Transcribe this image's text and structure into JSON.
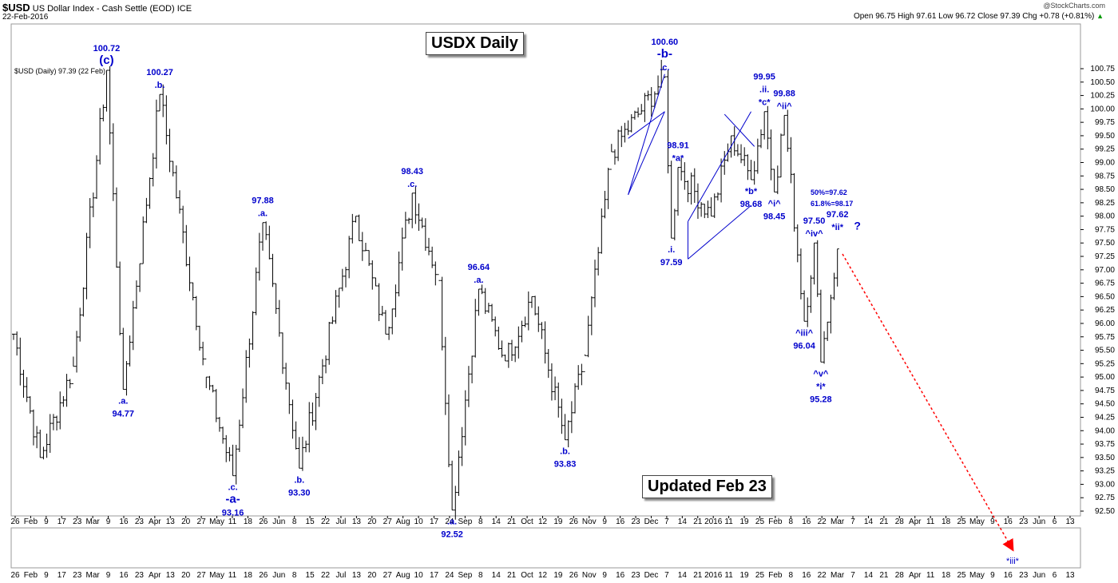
{
  "header": {
    "symbol": "$USD",
    "description": "US Dollar Index - Cash Settle (EOD)",
    "exchange": "ICE",
    "date": "22-Feb-2016",
    "credit": "@StockCharts.com",
    "quote": "Open 96.75  High 97.61  Low 96.72  Close 97.39  Chg +0.78 (+0.81%)",
    "quote_color": "#000000",
    "change_icon": "up-triangle-icon",
    "change_icon_color": "#009900"
  },
  "legend_text": "$USD (Daily) 97.39 (22 Feb)",
  "boxes": {
    "title": "USDX Daily",
    "updated": "Updated Feb 23"
  },
  "chart_data": {
    "type": "ohlc",
    "title": "USDX Daily",
    "ylim": [
      92.4,
      100.85
    ],
    "y_ticks": [
      "92.50",
      "92.75",
      "93.00",
      "93.25",
      "93.50",
      "93.75",
      "94.00",
      "94.25",
      "94.50",
      "94.75",
      "95.00",
      "95.25",
      "95.50",
      "95.75",
      "96.00",
      "96.25",
      "96.50",
      "96.75",
      "97.00",
      "97.25",
      "97.50",
      "97.75",
      "98.00",
      "98.25",
      "98.50",
      "98.75",
      "99.00",
      "99.25",
      "99.50",
      "99.75",
      "100.00",
      "100.25",
      "100.50",
      "100.75"
    ],
    "x_ticks": [
      "26",
      "Feb",
      "9",
      "17",
      "23",
      "Mar",
      "9",
      "16",
      "23",
      "Apr",
      "13",
      "20",
      "27",
      "May",
      "11",
      "18",
      "26",
      "Jun",
      "8",
      "15",
      "22",
      "Jul",
      "13",
      "20",
      "27",
      "Aug",
      "10",
      "17",
      "24",
      "Sep",
      "8",
      "14",
      "21",
      "Oct",
      "12",
      "19",
      "26",
      "Nov",
      "9",
      "16",
      "23",
      "Dec",
      "7",
      "14",
      "21",
      "2016",
      "11",
      "19",
      "25",
      "Feb",
      "8",
      "16",
      "22",
      "Mar",
      "7",
      "14",
      "21",
      "28",
      "Apr",
      "11",
      "18",
      "25",
      "May",
      "9",
      "16",
      "23",
      "Jun",
      "6",
      "13"
    ],
    "price_swings": [
      {
        "bar": 0,
        "price": 95.8
      },
      {
        "bar": 8,
        "price": 93.5
      },
      {
        "bar": 18,
        "price": 95.2
      },
      {
        "bar": 28,
        "price": 100.72
      },
      {
        "bar": 33,
        "price": 94.77
      },
      {
        "bar": 44,
        "price": 100.27
      },
      {
        "bar": 58,
        "price": 95.0
      },
      {
        "bar": 66,
        "price": 93.16
      },
      {
        "bar": 75,
        "price": 97.88
      },
      {
        "bar": 86,
        "price": 93.3
      },
      {
        "bar": 103,
        "price": 98.0
      },
      {
        "bar": 112,
        "price": 95.8
      },
      {
        "bar": 120,
        "price": 98.43
      },
      {
        "bar": 128,
        "price": 96.8
      },
      {
        "bar": 132,
        "price": 92.52
      },
      {
        "bar": 140,
        "price": 96.64
      },
      {
        "bar": 148,
        "price": 95.3
      },
      {
        "bar": 156,
        "price": 96.5
      },
      {
        "bar": 166,
        "price": 93.83
      },
      {
        "bar": 172,
        "price": 95.4
      },
      {
        "bar": 180,
        "price": 99.2
      },
      {
        "bar": 196,
        "price": 100.6
      },
      {
        "bar": 198,
        "price": 97.59
      },
      {
        "bar": 200,
        "price": 98.91
      },
      {
        "bar": 210,
        "price": 98.0
      },
      {
        "bar": 216,
        "price": 99.5
      },
      {
        "bar": 222,
        "price": 98.68
      },
      {
        "bar": 226,
        "price": 99.95
      },
      {
        "bar": 229,
        "price": 98.45
      },
      {
        "bar": 232,
        "price": 99.88
      },
      {
        "bar": 238,
        "price": 96.04
      },
      {
        "bar": 241,
        "price": 97.5
      },
      {
        "bar": 243,
        "price": 95.28
      },
      {
        "bar": 248,
        "price": 97.39
      }
    ],
    "annotations": [
      {
        "lines": [
          "100.72",
          "(c)"
        ],
        "bar": 28,
        "price": 100.72,
        "pos": "above"
      },
      {
        "lines": [
          "100.27",
          ".b."
        ],
        "bar": 44,
        "price": 100.27,
        "pos": "above"
      },
      {
        "lines": [
          ".a.",
          "94.77"
        ],
        "bar": 33,
        "price": 94.77,
        "pos": "below"
      },
      {
        "lines": [
          ".c.",
          "-a-",
          "93.16"
        ],
        "bar": 66,
        "price": 93.16,
        "pos": "below"
      },
      {
        "lines": [
          "97.88",
          ".a."
        ],
        "bar": 75,
        "price": 97.88,
        "pos": "above"
      },
      {
        "lines": [
          ".b.",
          "93.30"
        ],
        "bar": 86,
        "price": 93.3,
        "pos": "below"
      },
      {
        "lines": [
          "98.43",
          ".c."
        ],
        "bar": 120,
        "price": 98.43,
        "pos": "above"
      },
      {
        "lines": [
          ".a.",
          "92.52"
        ],
        "bar": 132,
        "price": 92.52,
        "pos": "below"
      },
      {
        "lines": [
          "96.64",
          ".a."
        ],
        "bar": 140,
        "price": 96.64,
        "pos": "above"
      },
      {
        "lines": [
          ".b.",
          "93.83"
        ],
        "bar": 166,
        "price": 93.83,
        "pos": "below"
      },
      {
        "lines": [
          "100.60",
          "-b-",
          ".c."
        ],
        "bar": 196,
        "price": 100.6,
        "pos": "above"
      },
      {
        "lines": [
          "98.91",
          "*a*"
        ],
        "bar": 200,
        "price": 98.91,
        "pos": "above"
      },
      {
        "lines": [
          ".i.",
          "97.59"
        ],
        "bar": 198,
        "price": 97.59,
        "pos": "below"
      },
      {
        "lines": [
          "*b*",
          "98.68"
        ],
        "bar": 222,
        "price": 98.68,
        "pos": "below"
      },
      {
        "lines": [
          "99.95",
          ".ii.",
          "*c*"
        ],
        "bar": 226,
        "price": 99.95,
        "pos": "above"
      },
      {
        "lines": [
          "^i^",
          "98.45"
        ],
        "bar": 229,
        "price": 98.45,
        "pos": "below"
      },
      {
        "lines": [
          "99.88",
          "^ii^"
        ],
        "bar": 232,
        "price": 99.88,
        "pos": "above"
      },
      {
        "lines": [
          "97.50",
          "^iv^"
        ],
        "bar": 241,
        "price": 97.5,
        "pos": "above"
      },
      {
        "lines": [
          "^iii^",
          "96.04"
        ],
        "bar": 238,
        "price": 96.04,
        "pos": "below"
      },
      {
        "lines": [
          "^v^",
          "*i*",
          "95.28"
        ],
        "bar": 243,
        "price": 95.28,
        "pos": "below"
      },
      {
        "lines": [
          "97.62",
          "*ii*"
        ],
        "bar": 248,
        "price": 97.62,
        "pos": "above"
      },
      {
        "lines": [
          "?"
        ],
        "bar": 252,
        "price": 97.75,
        "pos": "right"
      }
    ],
    "fib_note": [
      "50%=97.62",
      "61.8%=98.17"
    ],
    "projection_label": "*iii*",
    "trendlines": [
      {
        "from": {
          "bar": 185,
          "price": 98.4
        },
        "to": {
          "bar": 196,
          "price": 100.65
        }
      },
      {
        "from": {
          "bar": 185,
          "price": 99.45
        },
        "to": {
          "bar": 196,
          "price": 99.95
        }
      },
      {
        "from": {
          "bar": 196,
          "price": 99.95
        },
        "to": {
          "bar": 185,
          "price": 98.4
        }
      },
      {
        "from": {
          "bar": 203,
          "price": 97.2
        },
        "to": {
          "bar": 222,
          "price": 98.2
        }
      },
      {
        "from": {
          "bar": 203,
          "price": 97.9
        },
        "to": {
          "bar": 222,
          "price": 99.95
        }
      },
      {
        "from": {
          "bar": 203,
          "price": 97.2
        },
        "to": {
          "bar": 203,
          "price": 97.9
        }
      },
      {
        "from": {
          "bar": 214,
          "price": 99.9
        },
        "to": {
          "bar": 223,
          "price": 99.3
        }
      }
    ],
    "colors": {
      "bars": "#000000",
      "annotations": "#0000cc",
      "projection": "#ff0000"
    }
  }
}
